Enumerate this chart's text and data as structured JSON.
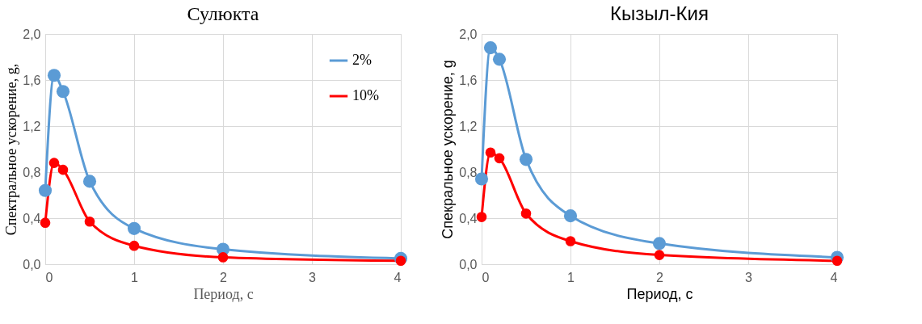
{
  "chart_data": [
    {
      "type": "line",
      "title": "Сулюкта",
      "xlabel": "Период, с",
      "ylabel": "Спектральное ускорение, g,",
      "xlim": [
        0,
        4
      ],
      "xticks": [
        0,
        1,
        2,
        3,
        4
      ],
      "ylim": [
        0,
        2.0
      ],
      "yticks": [
        {
          "value": 0,
          "label": "0,0"
        },
        {
          "value": 0.4,
          "label": "0,4"
        },
        {
          "value": 0.8,
          "label": "0,8"
        },
        {
          "value": 1.2,
          "label": "1,2"
        },
        {
          "value": 1.6,
          "label": "1,6"
        },
        {
          "value": 2.0,
          "label": "2,0"
        }
      ],
      "grid": true,
      "legend": "top right",
      "marker": "circle",
      "line_style": "solid",
      "x": [
        0,
        0.1,
        0.2,
        0.5,
        1,
        2,
        4
      ],
      "series": [
        {
          "name": "2%",
          "color": "#5b9bd5",
          "values": [
            0.64,
            1.64,
            1.5,
            0.72,
            0.31,
            0.13,
            0.05
          ]
        },
        {
          "name": "10%",
          "color": "#ff0000",
          "values": [
            0.36,
            0.88,
            0.82,
            0.37,
            0.16,
            0.06,
            0.03
          ]
        }
      ]
    },
    {
      "type": "line",
      "title": "Кызыл-Кия",
      "xlabel": "Период, с",
      "ylabel": "Спекральное ускорение, g",
      "xlim": [
        0,
        4
      ],
      "xticks": [
        0,
        1,
        2,
        3,
        4
      ],
      "ylim": [
        0,
        2.0
      ],
      "yticks": [
        {
          "value": 0,
          "label": "0,0"
        },
        {
          "value": 0.4,
          "label": "0,4"
        },
        {
          "value": 0.8,
          "label": "0,8"
        },
        {
          "value": 1.2,
          "label": "1,2"
        },
        {
          "value": 1.6,
          "label": "1,6"
        },
        {
          "value": 2.0,
          "label": "2,0"
        }
      ],
      "grid": true,
      "legend": "top right",
      "marker": "circle",
      "line_style": "solid",
      "x": [
        0,
        0.1,
        0.2,
        0.5,
        1,
        2,
        4
      ],
      "series": [
        {
          "name": "2%",
          "color": "#5b9bd5",
          "values": [
            0.74,
            1.88,
            1.78,
            0.91,
            0.42,
            0.18,
            0.06
          ]
        },
        {
          "name": "10%",
          "color": "#ff0000",
          "values": [
            0.41,
            0.97,
            0.92,
            0.44,
            0.2,
            0.08,
            0.03
          ]
        }
      ]
    }
  ]
}
